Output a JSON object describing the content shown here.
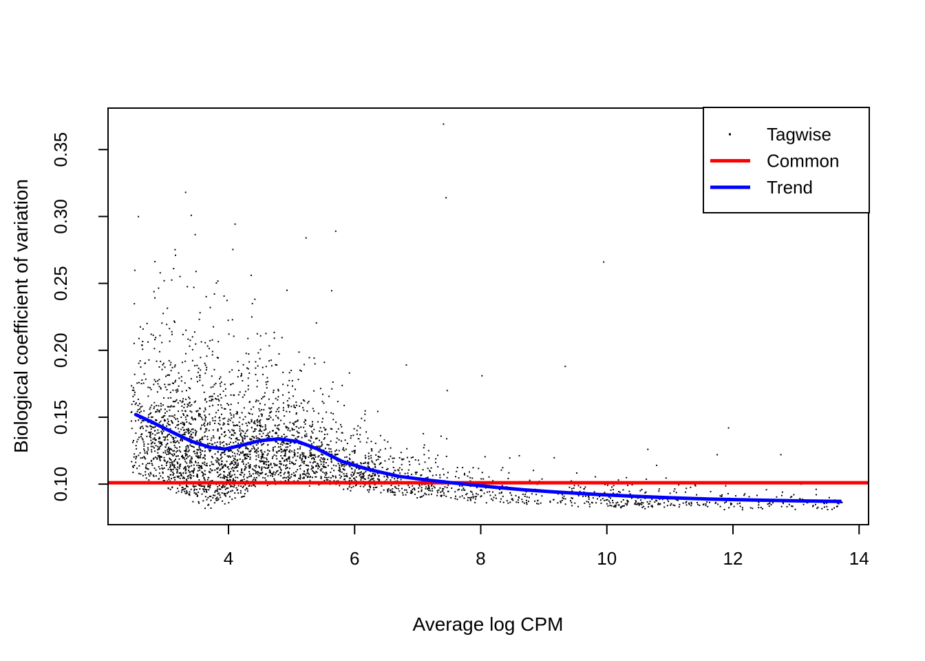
{
  "figure": {
    "background": "#FFFFFF",
    "foreground": "#000000"
  },
  "chart_data": {
    "type": "scatter",
    "title": "",
    "xlabel": "Average log CPM",
    "ylabel": "Biological coefficient of variation",
    "xlim": [
      2.09,
      14.15
    ],
    "ylim": [
      0.0697,
      0.381
    ],
    "grid": false,
    "x_ticks": [
      4,
      6,
      8,
      10,
      12,
      14
    ],
    "x_tick_labels": [
      "4",
      "6",
      "8",
      "10",
      "12",
      "14"
    ],
    "y_ticks": [
      0.1,
      0.15,
      0.2,
      0.25,
      0.3,
      0.35
    ],
    "y_tick_labels": [
      "0.10",
      "0.15",
      "0.20",
      "0.25",
      "0.30",
      "0.35"
    ],
    "legend": {
      "position": "top-right",
      "entries": [
        {
          "label": "Tagwise",
          "symbol": "point",
          "color": "#000000"
        },
        {
          "label": "Common",
          "symbol": "line",
          "color": "#FF0000"
        },
        {
          "label": "Trend",
          "symbol": "line",
          "color": "#0000FF"
        }
      ]
    },
    "series": {
      "common": {
        "name": "Common",
        "type": "hline",
        "y": 0.101,
        "color": "#FF0000"
      },
      "trend": {
        "name": "Trend",
        "type": "line",
        "color": "#0000FF",
        "x": [
          2.53,
          2.8,
          3.1,
          3.4,
          3.7,
          3.95,
          4.2,
          4.5,
          4.8,
          5.1,
          5.4,
          5.8,
          6.2,
          6.7,
          7.2,
          7.7,
          8.2,
          8.7,
          9.2,
          9.8,
          10.4,
          11.0,
          11.6,
          12.2,
          12.9,
          13.7
        ],
        "y": [
          0.152,
          0.146,
          0.139,
          0.1322,
          0.1276,
          0.1262,
          0.129,
          0.1325,
          0.1338,
          0.1318,
          0.1265,
          0.117,
          0.1112,
          0.1058,
          0.1028,
          0.1002,
          0.0978,
          0.0957,
          0.0941,
          0.0924,
          0.091,
          0.0898,
          0.0889,
          0.0882,
          0.0876,
          0.0871
        ]
      },
      "tagwise": {
        "name": "Tagwise",
        "type": "scatter",
        "color": "#000000",
        "marker": "dot",
        "outliers": [
          [
            7.41,
            0.369
          ],
          [
            7.45,
            0.314
          ],
          [
            3.32,
            0.318
          ],
          [
            9.95,
            0.266
          ],
          [
            5.7,
            0.289
          ],
          [
            5.23,
            0.284
          ],
          [
            3.16,
            0.271
          ],
          [
            4.36,
            0.256
          ],
          [
            2.98,
            0.252
          ],
          [
            3.45,
            0.247
          ],
          [
            6.82,
            0.189
          ],
          [
            9.34,
            0.188
          ],
          [
            8.02,
            0.181
          ],
          [
            11.93,
            0.142
          ],
          [
            12.76,
            0.122
          ],
          [
            11.75,
            0.122
          ],
          [
            10.65,
            0.126
          ],
          [
            10.79,
            0.114
          ]
        ],
        "generator": {
          "seed": 987654321,
          "n": 3400,
          "x_mixture": {
            "bulk_frac": 0.76,
            "bulk_origin": 2.45,
            "bulk_scale": 1.05,
            "mid_frac": 0.18,
            "mid_span": 8.4,
            "mid_power": 1.35,
            "right_frac": 0.06,
            "right_min": 9.8,
            "right_max": 13.75
          },
          "floor_x": [
            2.45,
            3.0,
            3.3,
            3.7,
            4.1,
            4.5,
            5.0,
            5.5,
            6.0,
            6.5,
            7.0,
            8.0,
            9.0,
            10.0,
            12.0,
            13.75
          ],
          "floor_y": [
            0.101,
            0.097,
            0.088,
            0.0795,
            0.086,
            0.097,
            0.0995,
            0.097,
            0.094,
            0.0915,
            0.0885,
            0.0848,
            0.0833,
            0.0818,
            0.0808,
            0.0803
          ],
          "spread_min": 0.0055,
          "sprinkle_prob": 0.007,
          "sprinkle_xmin": 6.0,
          "sprinkle_xmax": 10.5,
          "y_max": 0.36
        }
      }
    }
  }
}
